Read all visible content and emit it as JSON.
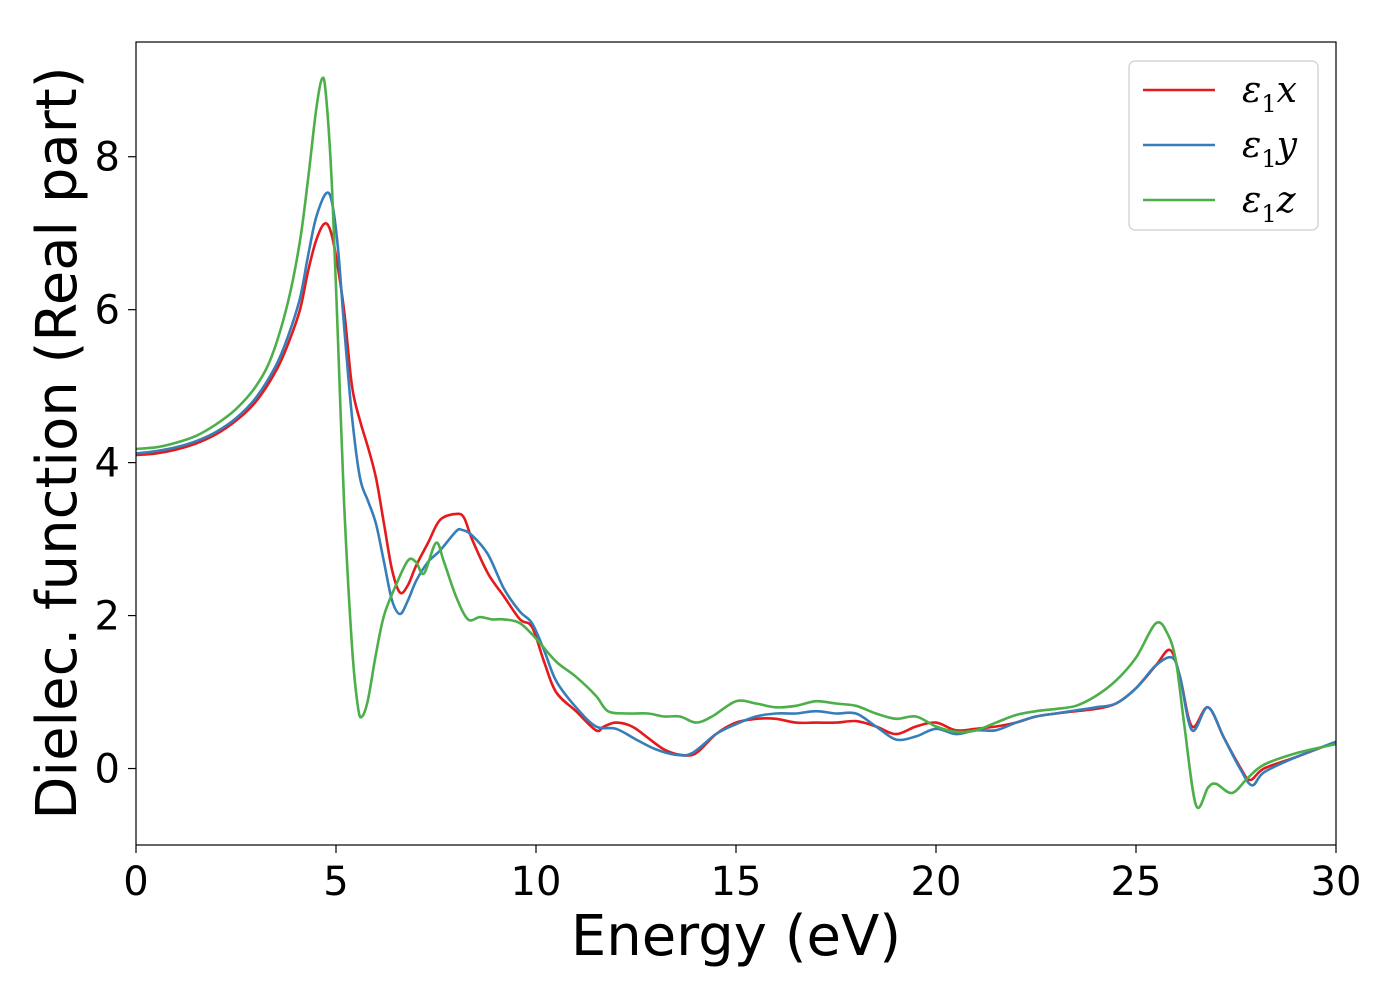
{
  "chart_data": {
    "type": "line",
    "xlabel": "Energy (eV)",
    "ylabel": "Dielec. function (Real part)",
    "xlim": [
      0,
      30
    ],
    "ylim": [
      -1.0,
      9.5
    ],
    "xticks": [
      0,
      5,
      10,
      15,
      20,
      25,
      30
    ],
    "yticks": [
      0,
      2,
      4,
      6,
      8
    ],
    "grid": false,
    "legend_position": "top-right",
    "series": [
      {
        "name": "ε1x",
        "legend_main": "ε",
        "legend_sub": "1",
        "legend_var": "x",
        "color": "#e41a1c",
        "points": [
          [
            0,
            4.1
          ],
          [
            0.5,
            4.12
          ],
          [
            1,
            4.17
          ],
          [
            1.5,
            4.25
          ],
          [
            2,
            4.37
          ],
          [
            2.5,
            4.55
          ],
          [
            3,
            4.8
          ],
          [
            3.5,
            5.2
          ],
          [
            3.8,
            5.55
          ],
          [
            4.1,
            6.0
          ],
          [
            4.3,
            6.5
          ],
          [
            4.5,
            6.9
          ],
          [
            4.7,
            7.12
          ],
          [
            4.85,
            7.05
          ],
          [
            5.0,
            6.7
          ],
          [
            5.2,
            6.0
          ],
          [
            5.4,
            5.0
          ],
          [
            5.6,
            4.55
          ],
          [
            5.8,
            4.2
          ],
          [
            6.0,
            3.8
          ],
          [
            6.2,
            3.2
          ],
          [
            6.4,
            2.6
          ],
          [
            6.6,
            2.3
          ],
          [
            6.8,
            2.4
          ],
          [
            7.0,
            2.65
          ],
          [
            7.3,
            2.95
          ],
          [
            7.6,
            3.25
          ],
          [
            8.0,
            3.33
          ],
          [
            8.2,
            3.28
          ],
          [
            8.4,
            3.0
          ],
          [
            8.8,
            2.55
          ],
          [
            9.2,
            2.25
          ],
          [
            9.6,
            1.95
          ],
          [
            9.9,
            1.85
          ],
          [
            10.2,
            1.4
          ],
          [
            10.5,
            1.0
          ],
          [
            11.0,
            0.75
          ],
          [
            11.5,
            0.5
          ],
          [
            11.7,
            0.55
          ],
          [
            12.0,
            0.6
          ],
          [
            12.4,
            0.55
          ],
          [
            12.8,
            0.4
          ],
          [
            13.2,
            0.25
          ],
          [
            13.6,
            0.18
          ],
          [
            14.0,
            0.2
          ],
          [
            14.5,
            0.45
          ],
          [
            15.0,
            0.6
          ],
          [
            15.5,
            0.65
          ],
          [
            16.0,
            0.65
          ],
          [
            16.5,
            0.6
          ],
          [
            17.0,
            0.6
          ],
          [
            17.5,
            0.6
          ],
          [
            18.0,
            0.62
          ],
          [
            18.5,
            0.55
          ],
          [
            19.0,
            0.45
          ],
          [
            19.5,
            0.55
          ],
          [
            20.0,
            0.6
          ],
          [
            20.5,
            0.5
          ],
          [
            21.0,
            0.52
          ],
          [
            21.5,
            0.55
          ],
          [
            22.0,
            0.6
          ],
          [
            22.5,
            0.68
          ],
          [
            23.0,
            0.72
          ],
          [
            23.5,
            0.75
          ],
          [
            24.0,
            0.78
          ],
          [
            24.5,
            0.85
          ],
          [
            25.0,
            1.05
          ],
          [
            25.5,
            1.35
          ],
          [
            25.85,
            1.55
          ],
          [
            26.1,
            1.2
          ],
          [
            26.4,
            0.55
          ],
          [
            26.8,
            0.8
          ],
          [
            27.2,
            0.4
          ],
          [
            27.6,
            0.02
          ],
          [
            27.85,
            -0.15
          ],
          [
            28.2,
            0.0
          ],
          [
            29.0,
            0.15
          ],
          [
            30,
            0.35
          ]
        ]
      },
      {
        "name": "ε1y",
        "legend_main": "ε",
        "legend_sub": "1",
        "legend_var": "y",
        "color": "#377eb8",
        "points": [
          [
            0,
            4.12
          ],
          [
            0.5,
            4.15
          ],
          [
            1,
            4.2
          ],
          [
            1.5,
            4.28
          ],
          [
            2,
            4.4
          ],
          [
            2.5,
            4.58
          ],
          [
            3,
            4.85
          ],
          [
            3.5,
            5.27
          ],
          [
            3.8,
            5.65
          ],
          [
            4.1,
            6.15
          ],
          [
            4.3,
            6.7
          ],
          [
            4.5,
            7.2
          ],
          [
            4.75,
            7.52
          ],
          [
            4.9,
            7.4
          ],
          [
            5.05,
            6.8
          ],
          [
            5.2,
            5.8
          ],
          [
            5.4,
            4.6
          ],
          [
            5.6,
            3.8
          ],
          [
            5.8,
            3.5
          ],
          [
            6.0,
            3.2
          ],
          [
            6.2,
            2.7
          ],
          [
            6.4,
            2.2
          ],
          [
            6.6,
            2.02
          ],
          [
            6.8,
            2.2
          ],
          [
            7.0,
            2.45
          ],
          [
            7.3,
            2.7
          ],
          [
            7.6,
            2.85
          ],
          [
            8.0,
            3.1
          ],
          [
            8.15,
            3.12
          ],
          [
            8.4,
            3.05
          ],
          [
            8.8,
            2.8
          ],
          [
            9.2,
            2.35
          ],
          [
            9.6,
            2.05
          ],
          [
            9.9,
            1.9
          ],
          [
            10.2,
            1.55
          ],
          [
            10.5,
            1.15
          ],
          [
            11.0,
            0.8
          ],
          [
            11.5,
            0.55
          ],
          [
            12.0,
            0.52
          ],
          [
            12.5,
            0.38
          ],
          [
            13.0,
            0.25
          ],
          [
            13.5,
            0.18
          ],
          [
            13.9,
            0.2
          ],
          [
            14.5,
            0.45
          ],
          [
            15.0,
            0.58
          ],
          [
            15.5,
            0.68
          ],
          [
            16.0,
            0.72
          ],
          [
            16.5,
            0.72
          ],
          [
            17.0,
            0.75
          ],
          [
            17.5,
            0.72
          ],
          [
            18.0,
            0.72
          ],
          [
            18.5,
            0.55
          ],
          [
            19.0,
            0.38
          ],
          [
            19.5,
            0.42
          ],
          [
            20.0,
            0.52
          ],
          [
            20.5,
            0.45
          ],
          [
            21.0,
            0.5
          ],
          [
            21.5,
            0.5
          ],
          [
            22.0,
            0.6
          ],
          [
            22.5,
            0.68
          ],
          [
            23.0,
            0.72
          ],
          [
            23.5,
            0.76
          ],
          [
            24.0,
            0.8
          ],
          [
            24.5,
            0.85
          ],
          [
            25.0,
            1.05
          ],
          [
            25.5,
            1.35
          ],
          [
            25.9,
            1.45
          ],
          [
            26.1,
            1.2
          ],
          [
            26.4,
            0.5
          ],
          [
            26.8,
            0.8
          ],
          [
            27.2,
            0.4
          ],
          [
            27.6,
            0.0
          ],
          [
            27.9,
            -0.22
          ],
          [
            28.2,
            -0.05
          ],
          [
            29.0,
            0.15
          ],
          [
            30,
            0.35
          ]
        ]
      },
      {
        "name": "ε1z",
        "legend_main": "ε",
        "legend_sub": "1",
        "legend_var": "z",
        "color": "#4daf4a",
        "points": [
          [
            0,
            4.18
          ],
          [
            0.5,
            4.2
          ],
          [
            1,
            4.26
          ],
          [
            1.5,
            4.35
          ],
          [
            2,
            4.5
          ],
          [
            2.5,
            4.7
          ],
          [
            3,
            5.0
          ],
          [
            3.4,
            5.4
          ],
          [
            3.8,
            6.1
          ],
          [
            4.1,
            6.9
          ],
          [
            4.3,
            7.7
          ],
          [
            4.5,
            8.6
          ],
          [
            4.65,
            9.02
          ],
          [
            4.75,
            8.8
          ],
          [
            4.9,
            7.6
          ],
          [
            5.05,
            5.6
          ],
          [
            5.2,
            3.5
          ],
          [
            5.4,
            1.6
          ],
          [
            5.55,
            0.8
          ],
          [
            5.65,
            0.68
          ],
          [
            5.8,
            0.9
          ],
          [
            6.0,
            1.5
          ],
          [
            6.2,
            2.0
          ],
          [
            6.5,
            2.4
          ],
          [
            6.8,
            2.72
          ],
          [
            7.0,
            2.7
          ],
          [
            7.2,
            2.55
          ],
          [
            7.5,
            2.95
          ],
          [
            7.7,
            2.7
          ],
          [
            8.0,
            2.25
          ],
          [
            8.3,
            1.95
          ],
          [
            8.6,
            1.98
          ],
          [
            8.9,
            1.95
          ],
          [
            9.2,
            1.95
          ],
          [
            9.6,
            1.9
          ],
          [
            10.0,
            1.7
          ],
          [
            10.5,
            1.4
          ],
          [
            11.0,
            1.2
          ],
          [
            11.5,
            0.95
          ],
          [
            11.8,
            0.75
          ],
          [
            12.3,
            0.72
          ],
          [
            12.8,
            0.72
          ],
          [
            13.2,
            0.68
          ],
          [
            13.6,
            0.68
          ],
          [
            14.0,
            0.6
          ],
          [
            14.4,
            0.68
          ],
          [
            15.0,
            0.88
          ],
          [
            15.5,
            0.85
          ],
          [
            16.0,
            0.8
          ],
          [
            16.5,
            0.82
          ],
          [
            17.0,
            0.88
          ],
          [
            17.5,
            0.85
          ],
          [
            18.0,
            0.82
          ],
          [
            18.5,
            0.72
          ],
          [
            19.0,
            0.65
          ],
          [
            19.5,
            0.68
          ],
          [
            20.0,
            0.55
          ],
          [
            20.5,
            0.48
          ],
          [
            21.0,
            0.5
          ],
          [
            21.5,
            0.6
          ],
          [
            22.0,
            0.7
          ],
          [
            22.5,
            0.75
          ],
          [
            23.0,
            0.78
          ],
          [
            23.5,
            0.82
          ],
          [
            24.0,
            0.95
          ],
          [
            24.5,
            1.15
          ],
          [
            25.0,
            1.45
          ],
          [
            25.5,
            1.9
          ],
          [
            25.8,
            1.75
          ],
          [
            26.0,
            1.4
          ],
          [
            26.2,
            0.6
          ],
          [
            26.5,
            -0.48
          ],
          [
            26.8,
            -0.25
          ],
          [
            27.0,
            -0.2
          ],
          [
            27.4,
            -0.32
          ],
          [
            27.8,
            -0.12
          ],
          [
            28.2,
            0.05
          ],
          [
            29.0,
            0.2
          ],
          [
            30,
            0.32
          ]
        ]
      }
    ]
  }
}
